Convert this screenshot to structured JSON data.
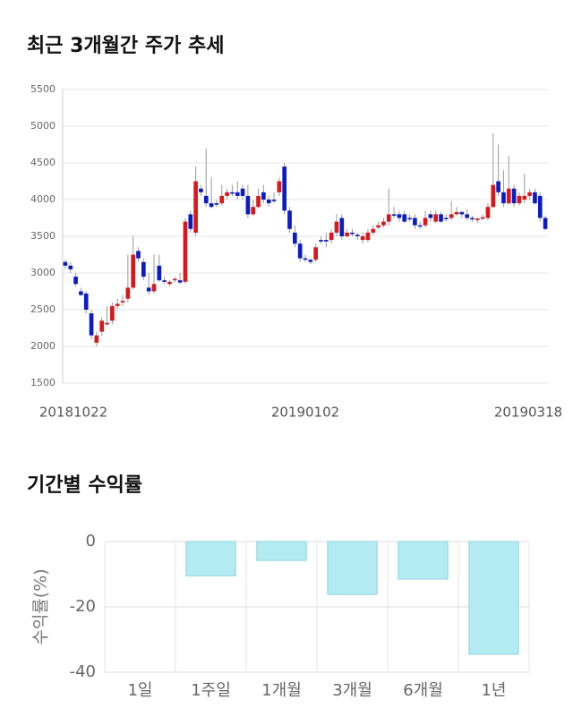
{
  "chart_data": [
    {
      "type": "candlestick",
      "title": "최근 3개월간 주가 추세",
      "categories": [
        "20181022",
        null,
        null,
        null,
        null,
        null,
        null,
        null,
        null,
        null,
        null,
        null,
        null,
        null,
        null,
        null,
        null,
        null,
        null,
        null,
        null,
        null,
        null,
        null,
        null,
        null,
        null,
        null,
        null,
        null,
        null,
        null,
        null,
        null,
        null,
        null,
        null,
        null,
        null,
        null,
        null,
        null,
        null,
        null,
        null,
        null,
        "20190102",
        null,
        null,
        null,
        null,
        null,
        null,
        null,
        null,
        null,
        null,
        null,
        null,
        null,
        null,
        null,
        null,
        null,
        null,
        null,
        null,
        null,
        null,
        null,
        null,
        null,
        null,
        null,
        null,
        null,
        null,
        null,
        null,
        null,
        null,
        null,
        null,
        null,
        null,
        null,
        null,
        null,
        null,
        null,
        null,
        null,
        "20190318"
      ],
      "open": [
        3150,
        3100,
        2950,
        2750,
        2720,
        2450,
        2050,
        2200,
        2300,
        2350,
        2550,
        2600,
        2650,
        2800,
        3300,
        3150,
        2800,
        2750,
        3100,
        2900,
        2850,
        2900,
        2900,
        2880,
        3800,
        3550,
        4150,
        4050,
        3950,
        3950,
        3950,
        4050,
        4100,
        4100,
        4150,
        4050,
        3800,
        3900,
        4100,
        4000,
        4000,
        4100,
        4450,
        3850,
        3550,
        3400,
        3200,
        3180,
        3180,
        3450,
        3450,
        3450,
        3550,
        3750,
        3500,
        3550,
        3520,
        3450,
        3450,
        3550,
        3620,
        3650,
        3700,
        3800,
        3800,
        3800,
        3750,
        3750,
        3650,
        3650,
        3800,
        3700,
        3800,
        3750,
        3750,
        3800,
        3830,
        3800,
        3750,
        3720,
        3740,
        3750,
        3900,
        4250,
        4100,
        3950,
        4150,
        3950,
        4000,
        4050,
        4100,
        4050,
        3750
      ],
      "high": [
        3180,
        3150,
        3000,
        2800,
        2750,
        2500,
        2200,
        2400,
        2550,
        2600,
        2650,
        2700,
        3250,
        3500,
        3350,
        3200,
        3000,
        3250,
        3250,
        2950,
        2900,
        2950,
        3000,
        3750,
        3850,
        4450,
        4200,
        4700,
        4300,
        4000,
        4200,
        4150,
        4200,
        4250,
        4200,
        4200,
        4000,
        4150,
        4200,
        4050,
        4100,
        4300,
        4500,
        3900,
        3650,
        3450,
        3250,
        3200,
        3400,
        3500,
        3550,
        3600,
        3800,
        3800,
        3600,
        3600,
        3550,
        3550,
        3600,
        3650,
        3700,
        3750,
        4150,
        3900,
        3850,
        3850,
        3800,
        3800,
        3700,
        3850,
        3850,
        3850,
        3830,
        3800,
        3980,
        3900,
        3850,
        3870,
        3780,
        3760,
        3800,
        3950,
        4900,
        4750,
        4400,
        4600,
        4200,
        4100,
        4350,
        4150,
        4150,
        4100,
        3780
      ],
      "low": [
        3050,
        3000,
        2820,
        2680,
        2450,
        2100,
        2000,
        2150,
        2280,
        2300,
        2500,
        2550,
        2600,
        2780,
        3150,
        2900,
        2700,
        2720,
        2880,
        2850,
        2820,
        2870,
        2850,
        2850,
        3550,
        3500,
        4050,
        3900,
        3880,
        3900,
        3920,
        4000,
        4050,
        4000,
        4000,
        3750,
        3780,
        3880,
        3950,
        3900,
        3950,
        4050,
        3800,
        3550,
        3350,
        3150,
        3150,
        3120,
        3150,
        3400,
        3350,
        3400,
        3500,
        3450,
        3480,
        3500,
        3450,
        3400,
        3420,
        3520,
        3600,
        3620,
        3650,
        3750,
        3700,
        3680,
        3700,
        3600,
        3600,
        3620,
        3700,
        3680,
        3680,
        3700,
        3720,
        3780,
        3750,
        3720,
        3700,
        3680,
        3720,
        3720,
        3880,
        4050,
        3900,
        3930,
        3900,
        3920,
        3950,
        4000,
        3930,
        3700,
        3580
      ],
      "close": [
        3100,
        3050,
        2850,
        2700,
        2500,
        2150,
        2150,
        2350,
        2320,
        2550,
        2580,
        2620,
        2800,
        3250,
        3200,
        2950,
        2750,
        2850,
        2900,
        2880,
        2880,
        2920,
        2870,
        3700,
        3600,
        4250,
        4100,
        3950,
        3900,
        3930,
        4050,
        4100,
        4080,
        4050,
        4050,
        3800,
        3900,
        4050,
        4000,
        3950,
        3980,
        4250,
        3850,
        3600,
        3400,
        3200,
        3180,
        3150,
        3350,
        3430,
        3430,
        3550,
        3700,
        3500,
        3550,
        3530,
        3500,
        3500,
        3550,
        3600,
        3650,
        3700,
        3800,
        3780,
        3750,
        3700,
        3730,
        3650,
        3640,
        3750,
        3750,
        3800,
        3700,
        3740,
        3800,
        3830,
        3800,
        3750,
        3730,
        3740,
        3760,
        3900,
        4200,
        4100,
        3950,
        4150,
        3950,
        4050,
        4050,
        4100,
        3950,
        3750,
        3600
      ],
      "up_color": "#d7191c",
      "down_color": "#0b1cc2",
      "ylim": [
        1500,
        5500
      ],
      "yticks": [
        1500,
        2000,
        2500,
        3000,
        3500,
        4000,
        4500,
        5000,
        5500
      ],
      "grid": true
    },
    {
      "type": "bar",
      "title": "기간별 수익률",
      "y_label": "수익률(%)",
      "categories": [
        "1일",
        "1주일",
        "1개월",
        "3개월",
        "6개월",
        "1년"
      ],
      "values": [
        0,
        -10.5,
        -5.8,
        -16.2,
        -11.5,
        -34.5
      ],
      "color": "#b3ebf3",
      "ylim": [
        -40,
        0
      ],
      "yticks": [
        0,
        -20,
        -40
      ],
      "grid": true
    }
  ]
}
